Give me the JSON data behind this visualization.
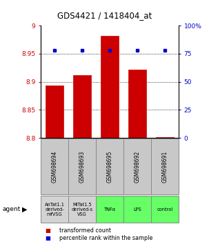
{
  "title": "GDS4421 / 1418404_at",
  "samples": [
    "GSM698694",
    "GSM698693",
    "GSM698695",
    "GSM698692",
    "GSM698691"
  ],
  "agents": [
    "AnTat1.1\nderived-\nmfVSG",
    "MiTat1.5\nderived-s\nVSG",
    "TNFα",
    "LPS",
    "control"
  ],
  "agent_colors": [
    "#d3d3d3",
    "#d3d3d3",
    "#66ff66",
    "#66ff66",
    "#66ff66"
  ],
  "bar_values": [
    8.893,
    8.912,
    8.982,
    8.921,
    8.801
  ],
  "percentile_values": [
    78,
    78,
    78,
    78,
    78
  ],
  "ymin": 8.8,
  "ymax": 9.0,
  "yticks": [
    8.8,
    8.85,
    8.9,
    8.95,
    9.0
  ],
  "ytick_labels": [
    "8.8",
    "8.85",
    "8.9",
    "8.95",
    "9"
  ],
  "right_yticks": [
    0,
    25,
    50,
    75,
    100
  ],
  "right_ytick_labels": [
    "0",
    "25",
    "50",
    "75",
    "100%"
  ],
  "bar_color": "#cc0000",
  "dot_color": "#0000cc",
  "bar_bottom": 8.8,
  "legend_items": [
    {
      "label": "transformed count",
      "color": "#cc0000"
    },
    {
      "label": "percentile rank within the sample",
      "color": "#0000cc"
    }
  ]
}
